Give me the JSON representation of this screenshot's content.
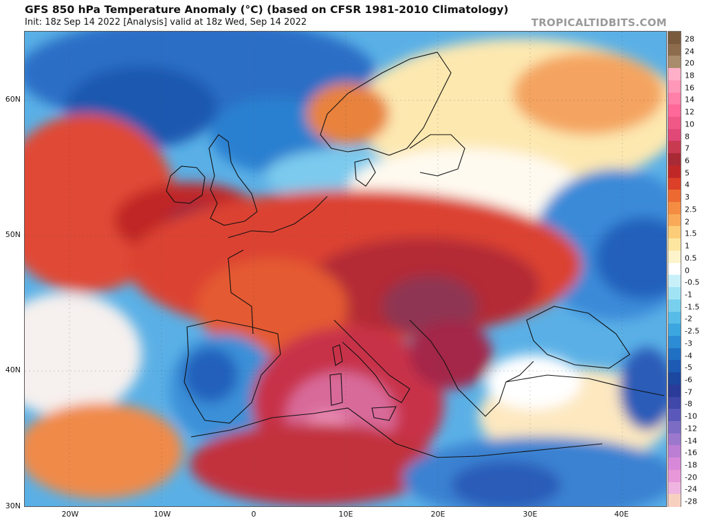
{
  "header": {
    "title": "GFS 850 hPa Temperature Anomaly (°C) (based on CFSR 1981-2010 Climatology)",
    "subtitle": "Init: 18z Sep 14 2022   [Analysis]   valid at 18z Wed, Sep 14 2022",
    "brand": "TROPICALTIDBITS.COM"
  },
  "axes": {
    "lat_labels": [
      "60N",
      "50N",
      "40N",
      "30N"
    ],
    "lon_labels": [
      "20W",
      "10W",
      "0",
      "10E",
      "20E",
      "30E",
      "40E"
    ]
  },
  "colorbar": {
    "labels": [
      "28",
      "24",
      "20",
      "18",
      "16",
      "14",
      "12",
      "10",
      "8",
      "7",
      "6",
      "5",
      "4",
      "3",
      "2.5",
      "2",
      "1.5",
      "1",
      "0.5",
      "0",
      "-0.5",
      "-1",
      "-1.5",
      "-2",
      "-2.5",
      "-3",
      "-4",
      "-5",
      "-6",
      "-7",
      "-8",
      "-10",
      "-12",
      "-14",
      "-16",
      "-18",
      "-20",
      "-24",
      "-28"
    ],
    "colors": [
      "#7a5a3c",
      "#8c6c4c",
      "#a98c6c",
      "#ffb0c8",
      "#ff98b8",
      "#ff80a8",
      "#ff6898",
      "#f05888",
      "#e04878",
      "#c83a50",
      "#a82a34",
      "#c02828",
      "#dc4028",
      "#ec6a32",
      "#f48c42",
      "#f8aa58",
      "#fccc78",
      "#fde6a0",
      "#fef4cc",
      "#ffffff",
      "#c8f0f8",
      "#a0e4f4",
      "#78d0ee",
      "#58bce8",
      "#3ca6e0",
      "#2c8cd4",
      "#2070c4",
      "#1c5ab4",
      "#1c48a0",
      "#2a3c98",
      "#4048a8",
      "#5a58b8",
      "#7c6cc4",
      "#9c78cc",
      "#bc7ed4",
      "#d888d8",
      "#e898d8",
      "#f0b4e0",
      "#f8d0c0"
    ]
  }
}
